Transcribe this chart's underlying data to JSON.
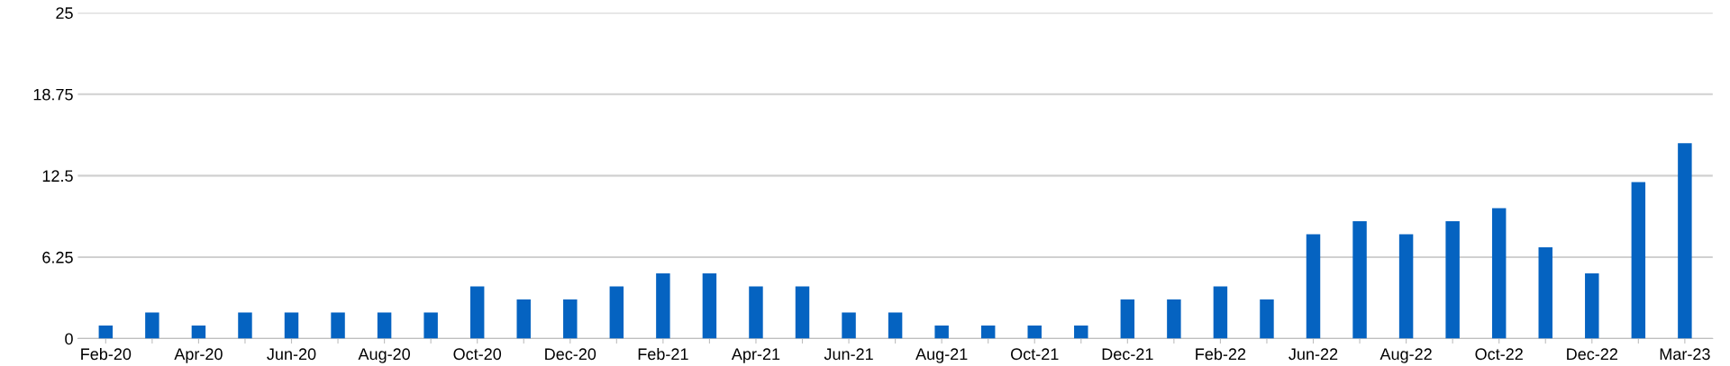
{
  "chart_data": {
    "type": "bar",
    "categories": [
      "Feb-20",
      null,
      "Apr-20",
      null,
      "Jun-20",
      null,
      "Aug-20",
      null,
      "Oct-20",
      null,
      "Dec-20",
      null,
      "Feb-21",
      null,
      "Apr-21",
      null,
      "Jun-21",
      null,
      "Aug-21",
      null,
      "Oct-21",
      null,
      "Dec-21",
      null,
      "Feb-22",
      null,
      "Jun-22",
      null,
      "Aug-22",
      null,
      "Oct-22",
      null,
      "Dec-22",
      null,
      "Mar-23"
    ],
    "values": [
      1,
      2,
      1,
      2,
      2,
      2,
      2,
      2,
      4,
      3,
      3,
      4,
      5,
      5,
      4,
      4,
      2,
      2,
      1,
      1,
      1,
      1,
      3,
      3,
      4,
      3,
      8,
      9,
      8,
      9,
      10,
      7,
      5,
      12,
      15
    ],
    "color": "#0563c1",
    "ylim": [
      0,
      25
    ],
    "yticks": [
      0,
      6.25,
      12.5,
      18.75,
      25
    ],
    "grid": "y"
  }
}
